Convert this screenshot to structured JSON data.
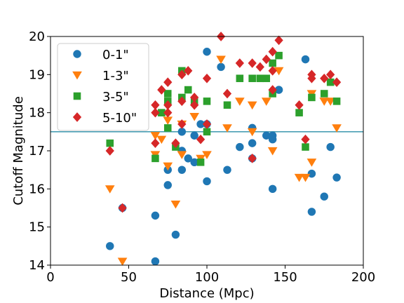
{
  "chart_data": {
    "type": "scatter",
    "xlabel": "Distance (Mpc)",
    "ylabel": "Cutoff Magnitude",
    "xlim": [
      0,
      200
    ],
    "ylim": [
      14,
      20
    ],
    "xticks": [
      "0",
      "50",
      "100",
      "150",
      "200"
    ],
    "yticks": [
      "14",
      "15",
      "16",
      "17",
      "18",
      "19",
      "20"
    ],
    "grid": false,
    "legend_position": "top-left",
    "reference_line": {
      "y": 17.5,
      "color": "#4a9fb4"
    },
    "series": [
      {
        "name": "0-1\"",
        "marker": "circle",
        "color": "#1f77b4",
        "points": [
          [
            38,
            14.5
          ],
          [
            46,
            15.5
          ],
          [
            67,
            15.3
          ],
          [
            67,
            14.1
          ],
          [
            75,
            16.1
          ],
          [
            75,
            16.5
          ],
          [
            80,
            14.8
          ],
          [
            84,
            16.5
          ],
          [
            84,
            17.0
          ],
          [
            84,
            17.5
          ],
          [
            88,
            16.8
          ],
          [
            92,
            16.7
          ],
          [
            92,
            17.4
          ],
          [
            96,
            17.7
          ],
          [
            100,
            16.2
          ],
          [
            100,
            17.7
          ],
          [
            100,
            19.6
          ],
          [
            109,
            19.2
          ],
          [
            113,
            16.5
          ],
          [
            121,
            17.1
          ],
          [
            129,
            17.2
          ],
          [
            129,
            17.6
          ],
          [
            129,
            16.8
          ],
          [
            138,
            17.4
          ],
          [
            142,
            17.4
          ],
          [
            142,
            17.3
          ],
          [
            142,
            16.0
          ],
          [
            146,
            18.6
          ],
          [
            163,
            19.4
          ],
          [
            167,
            15.4
          ],
          [
            167,
            16.4
          ],
          [
            175,
            15.8
          ],
          [
            179,
            17.1
          ],
          [
            183,
            16.3
          ]
        ]
      },
      {
        "name": "1-3\"",
        "marker": "triangle-down",
        "color": "#ff7f0e",
        "points": [
          [
            38,
            16.0
          ],
          [
            46,
            14.1
          ],
          [
            67,
            17.4
          ],
          [
            67,
            16.9
          ],
          [
            71,
            17.3
          ],
          [
            75,
            16.6
          ],
          [
            75,
            17.8
          ],
          [
            80,
            15.6
          ],
          [
            84,
            16.9
          ],
          [
            84,
            17.7
          ],
          [
            92,
            17.9
          ],
          [
            96,
            16.8
          ],
          [
            100,
            16.9
          ],
          [
            109,
            19.4
          ],
          [
            113,
            17.6
          ],
          [
            121,
            18.3
          ],
          [
            129,
            18.2
          ],
          [
            129,
            17.5
          ],
          [
            138,
            18.3
          ],
          [
            142,
            17.0
          ],
          [
            146,
            19.1
          ],
          [
            159,
            16.3
          ],
          [
            163,
            16.3
          ],
          [
            167,
            16.7
          ],
          [
            167,
            18.5
          ],
          [
            175,
            18.3
          ],
          [
            179,
            18.3
          ],
          [
            183,
            17.6
          ]
        ]
      },
      {
        "name": "3-5\"",
        "marker": "square",
        "color": "#2ca02c",
        "points": [
          [
            38,
            17.2
          ],
          [
            67,
            16.8
          ],
          [
            71,
            18.0
          ],
          [
            75,
            17.6
          ],
          [
            75,
            18.3
          ],
          [
            75,
            18.5
          ],
          [
            80,
            17.1
          ],
          [
            84,
            18.4
          ],
          [
            84,
            19.1
          ],
          [
            88,
            18.6
          ],
          [
            92,
            18.3
          ],
          [
            96,
            16.7
          ],
          [
            100,
            18.3
          ],
          [
            100,
            17.5
          ],
          [
            113,
            18.2
          ],
          [
            121,
            18.9
          ],
          [
            129,
            18.9
          ],
          [
            134,
            18.9
          ],
          [
            138,
            18.9
          ],
          [
            142,
            19.3
          ],
          [
            142,
            18.5
          ],
          [
            146,
            19.5
          ],
          [
            159,
            18.0
          ],
          [
            163,
            17.1
          ],
          [
            167,
            18.4
          ],
          [
            175,
            18.5
          ],
          [
            179,
            18.8
          ],
          [
            183,
            18.3
          ]
        ]
      },
      {
        "name": "5-10\"",
        "marker": "diamond",
        "color": "#d62728",
        "points": [
          [
            38,
            17.0
          ],
          [
            46,
            15.5
          ],
          [
            67,
            18.2
          ],
          [
            67,
            18.0
          ],
          [
            67,
            17.2
          ],
          [
            71,
            18.6
          ],
          [
            75,
            18.8
          ],
          [
            75,
            18.0
          ],
          [
            75,
            18.2
          ],
          [
            80,
            17.2
          ],
          [
            84,
            19.0
          ],
          [
            84,
            18.3
          ],
          [
            84,
            17.7
          ],
          [
            88,
            19.1
          ],
          [
            92,
            18.4
          ],
          [
            92,
            18.2
          ],
          [
            96,
            17.3
          ],
          [
            100,
            17.7
          ],
          [
            100,
            18.9
          ],
          [
            109,
            20.0
          ],
          [
            113,
            18.5
          ],
          [
            121,
            19.3
          ],
          [
            129,
            19.3
          ],
          [
            129,
            16.8
          ],
          [
            134,
            19.2
          ],
          [
            138,
            19.4
          ],
          [
            142,
            19.6
          ],
          [
            142,
            19.1
          ],
          [
            142,
            18.6
          ],
          [
            146,
            19.9
          ],
          [
            159,
            18.2
          ],
          [
            163,
            17.3
          ],
          [
            167,
            19.0
          ],
          [
            167,
            18.9
          ],
          [
            175,
            18.9
          ],
          [
            179,
            19.0
          ],
          [
            183,
            18.8
          ]
        ]
      }
    ]
  }
}
